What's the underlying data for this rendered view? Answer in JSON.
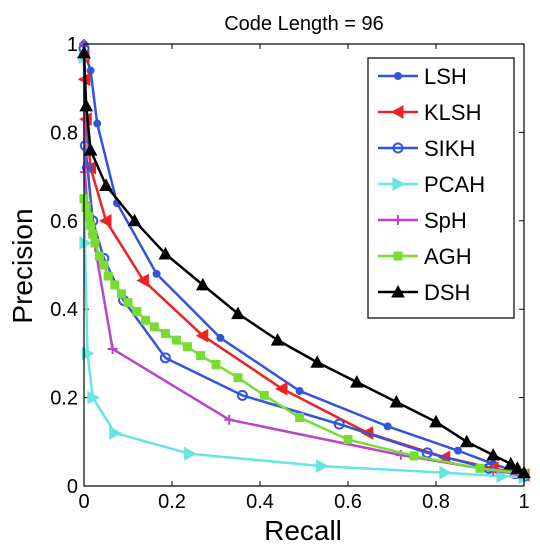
{
  "chart_data": {
    "type": "line",
    "title": "Code Length = 96",
    "xlabel": "Recall",
    "ylabel": "Precision",
    "xlim": [
      0,
      1
    ],
    "ylim": [
      0,
      1
    ],
    "xticks": [
      "0",
      "0.2",
      "0.4",
      "0.6",
      "0.8",
      "1"
    ],
    "yticks": [
      "0",
      "0.2",
      "0.4",
      "0.6",
      "0.8",
      "1"
    ],
    "grid": false,
    "legend_position": "top-right",
    "series": [
      {
        "name": "LSH",
        "color": "#3355dd",
        "marker": "dot",
        "x": [
          0.0,
          0.005,
          0.015,
          0.03,
          0.075,
          0.165,
          0.31,
          0.49,
          0.69,
          0.85,
          0.93,
          0.975,
          1.0
        ],
        "y": [
          1.0,
          0.97,
          0.94,
          0.82,
          0.64,
          0.48,
          0.335,
          0.215,
          0.135,
          0.08,
          0.05,
          0.035,
          0.025
        ]
      },
      {
        "name": "KLSH",
        "color": "#ee2222",
        "marker": "triangle-left",
        "x": [
          0.0,
          0.002,
          0.005,
          0.015,
          0.05,
          0.135,
          0.27,
          0.45,
          0.645,
          0.82,
          0.93,
          0.98,
          1.0
        ],
        "y": [
          0.97,
          0.92,
          0.83,
          0.72,
          0.6,
          0.465,
          0.34,
          0.22,
          0.12,
          0.065,
          0.04,
          0.03,
          0.025
        ]
      },
      {
        "name": "SIKH",
        "color": "#3355dd",
        "marker": "circle",
        "x": [
          0.0,
          0.003,
          0.008,
          0.02,
          0.045,
          0.09,
          0.185,
          0.36,
          0.58,
          0.78,
          0.92,
          0.98,
          1.0
        ],
        "y": [
          0.99,
          0.77,
          0.72,
          0.6,
          0.515,
          0.42,
          0.29,
          0.205,
          0.14,
          0.075,
          0.04,
          0.028,
          0.022
        ]
      },
      {
        "name": "PCAH",
        "color": "#66e6e0",
        "marker": "triangle-right",
        "x": [
          0.0,
          0.002,
          0.008,
          0.02,
          0.07,
          0.24,
          0.54,
          0.82,
          0.95,
          1.0
        ],
        "y": [
          0.97,
          0.55,
          0.3,
          0.2,
          0.12,
          0.073,
          0.045,
          0.03,
          0.022,
          0.02
        ]
      },
      {
        "name": "SpH",
        "color": "#bb44cc",
        "marker": "plus",
        "x": [
          0.0,
          0.002,
          0.007,
          0.02,
          0.065,
          0.33,
          0.72,
          0.93,
          1.0
        ],
        "y": [
          1.0,
          0.71,
          0.64,
          0.57,
          0.31,
          0.15,
          0.07,
          0.035,
          0.025
        ]
      },
      {
        "name": "AGH",
        "color": "#77dd33",
        "marker": "square",
        "x": [
          0.0,
          0.005,
          0.01,
          0.015,
          0.02,
          0.025,
          0.035,
          0.045,
          0.055,
          0.07,
          0.085,
          0.1,
          0.12,
          0.14,
          0.16,
          0.185,
          0.21,
          0.235,
          0.265,
          0.3,
          0.35,
          0.41,
          0.49,
          0.6,
          0.75,
          0.9,
          1.0
        ],
        "y": [
          0.65,
          0.63,
          0.61,
          0.59,
          0.57,
          0.55,
          0.52,
          0.5,
          0.475,
          0.455,
          0.435,
          0.415,
          0.395,
          0.375,
          0.36,
          0.345,
          0.33,
          0.315,
          0.295,
          0.275,
          0.245,
          0.205,
          0.155,
          0.105,
          0.068,
          0.04,
          0.028
        ]
      },
      {
        "name": "DSH",
        "color": "#000000",
        "marker": "triangle-up",
        "x": [
          0.0,
          0.005,
          0.015,
          0.05,
          0.115,
          0.185,
          0.27,
          0.35,
          0.44,
          0.53,
          0.62,
          0.71,
          0.8,
          0.87,
          0.93,
          0.97,
          0.985,
          1.0
        ],
        "y": [
          0.98,
          0.86,
          0.76,
          0.68,
          0.6,
          0.525,
          0.455,
          0.39,
          0.33,
          0.28,
          0.235,
          0.19,
          0.145,
          0.1,
          0.07,
          0.05,
          0.04,
          0.03
        ]
      }
    ]
  }
}
